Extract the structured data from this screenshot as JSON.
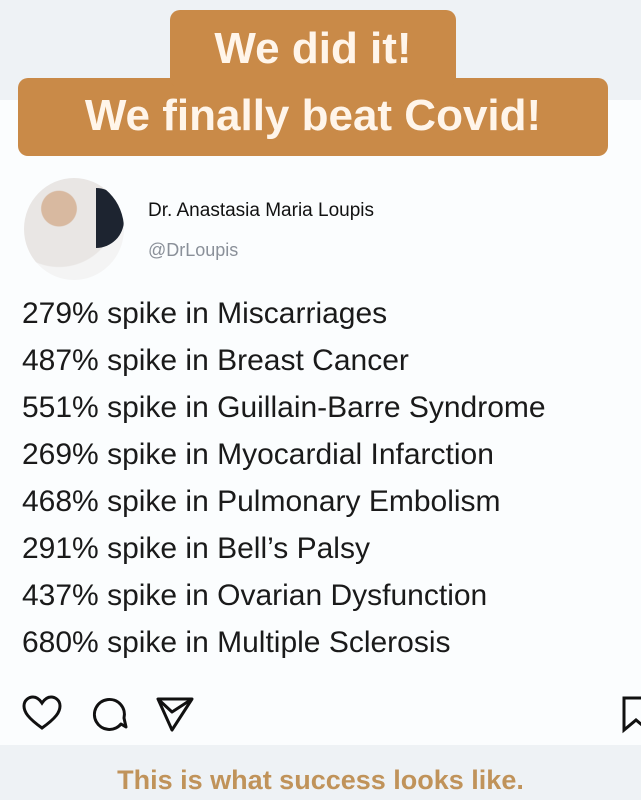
{
  "banner": {
    "line1": "We did it!",
    "line2": "We finally beat Covid!",
    "color": "#c98a48"
  },
  "post": {
    "author_name": "Dr. Anastasia Maria Loupis",
    "author_handle": "@DrLoupis",
    "lines": [
      "279% spike in Miscarriages",
      "487% spike in Breast Cancer",
      "551% spike in Guillain-Barre Syndrome",
      "269% spike in Myocardial Infarction",
      "468% spike in Pulmonary Embolism",
      "291% spike in Bell’s Palsy",
      "437% spike in Ovarian Dysfunction",
      "680% spike in Multiple Sclerosis"
    ],
    "actions": [
      "heart-icon",
      "comment-icon",
      "share-icon",
      "bookmark-icon"
    ]
  },
  "caption": "This is what success looks like."
}
